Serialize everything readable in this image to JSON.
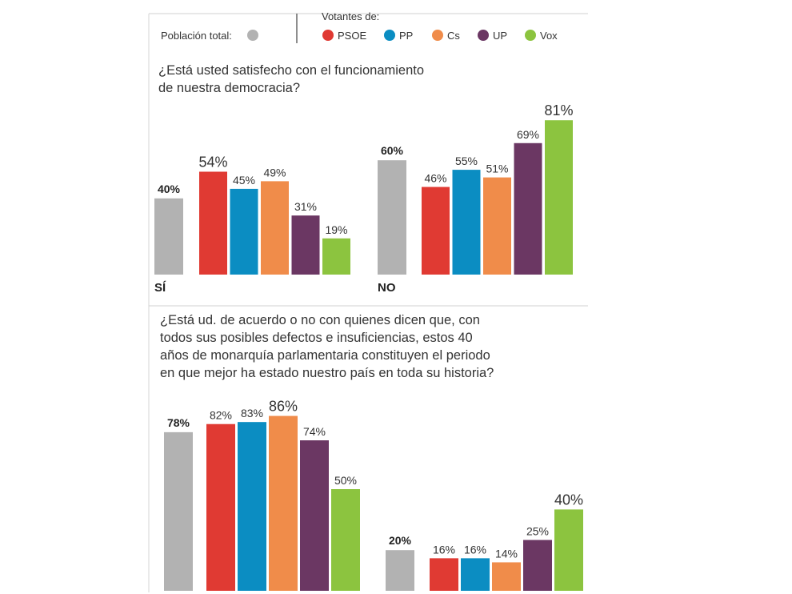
{
  "legend": {
    "total_label": "Población total:",
    "voters_label": "Votantes de:",
    "parties": [
      {
        "name": "PSOE",
        "color": "#e03a33"
      },
      {
        "name": "PP",
        "color": "#0b8dc2"
      },
      {
        "name": "Cs",
        "color": "#f08c4a"
      },
      {
        "name": "UP",
        "color": "#6b3763"
      },
      {
        "name": "Vox",
        "color": "#8cc43f"
      }
    ],
    "total_color": "#b2b2b2"
  },
  "chart_data": [
    {
      "type": "bar",
      "title": "¿Está usted satisfecho con el funcionamiento de nuestra democracia?",
      "title_lines": [
        "¿Está usted satisfecho con el funcionamiento",
        "de nuestra democracia?"
      ],
      "groups": [
        {
          "label": "SÍ",
          "total": 40,
          "values": [
            54,
            45,
            49,
            31,
            19
          ]
        },
        {
          "label": "NO",
          "total": 60,
          "values": [
            46,
            55,
            51,
            69,
            81
          ]
        }
      ],
      "series": [
        "PSOE",
        "PP",
        "Cs",
        "UP",
        "Vox"
      ],
      "unit": "%",
      "ylim": [
        0,
        100
      ]
    },
    {
      "type": "bar",
      "title": "¿Está ud. de acuerdo o no con quienes dicen que, con todos sus posibles defectos e insuficiencias, estos 40 años de monarquía parlamentaria constituyen el periodo en que mejor ha estado nuestro país en toda su historia?",
      "title_lines": [
        "¿Está ud. de acuerdo o no con quienes dicen que, con",
        "todos sus posibles defectos e insuficiencias, estos 40",
        "años de monarquía parlamentaria constituyen el periodo",
        "en que mejor ha estado nuestro país en toda su historia?"
      ],
      "groups": [
        {
          "label": "",
          "total": 78,
          "values": [
            82,
            83,
            86,
            74,
            50
          ]
        },
        {
          "label": "",
          "total": 20,
          "values": [
            16,
            16,
            14,
            25,
            40
          ]
        }
      ],
      "series": [
        "PSOE",
        "PP",
        "Cs",
        "UP",
        "Vox"
      ],
      "unit": "%",
      "ylim": [
        0,
        100
      ]
    }
  ]
}
